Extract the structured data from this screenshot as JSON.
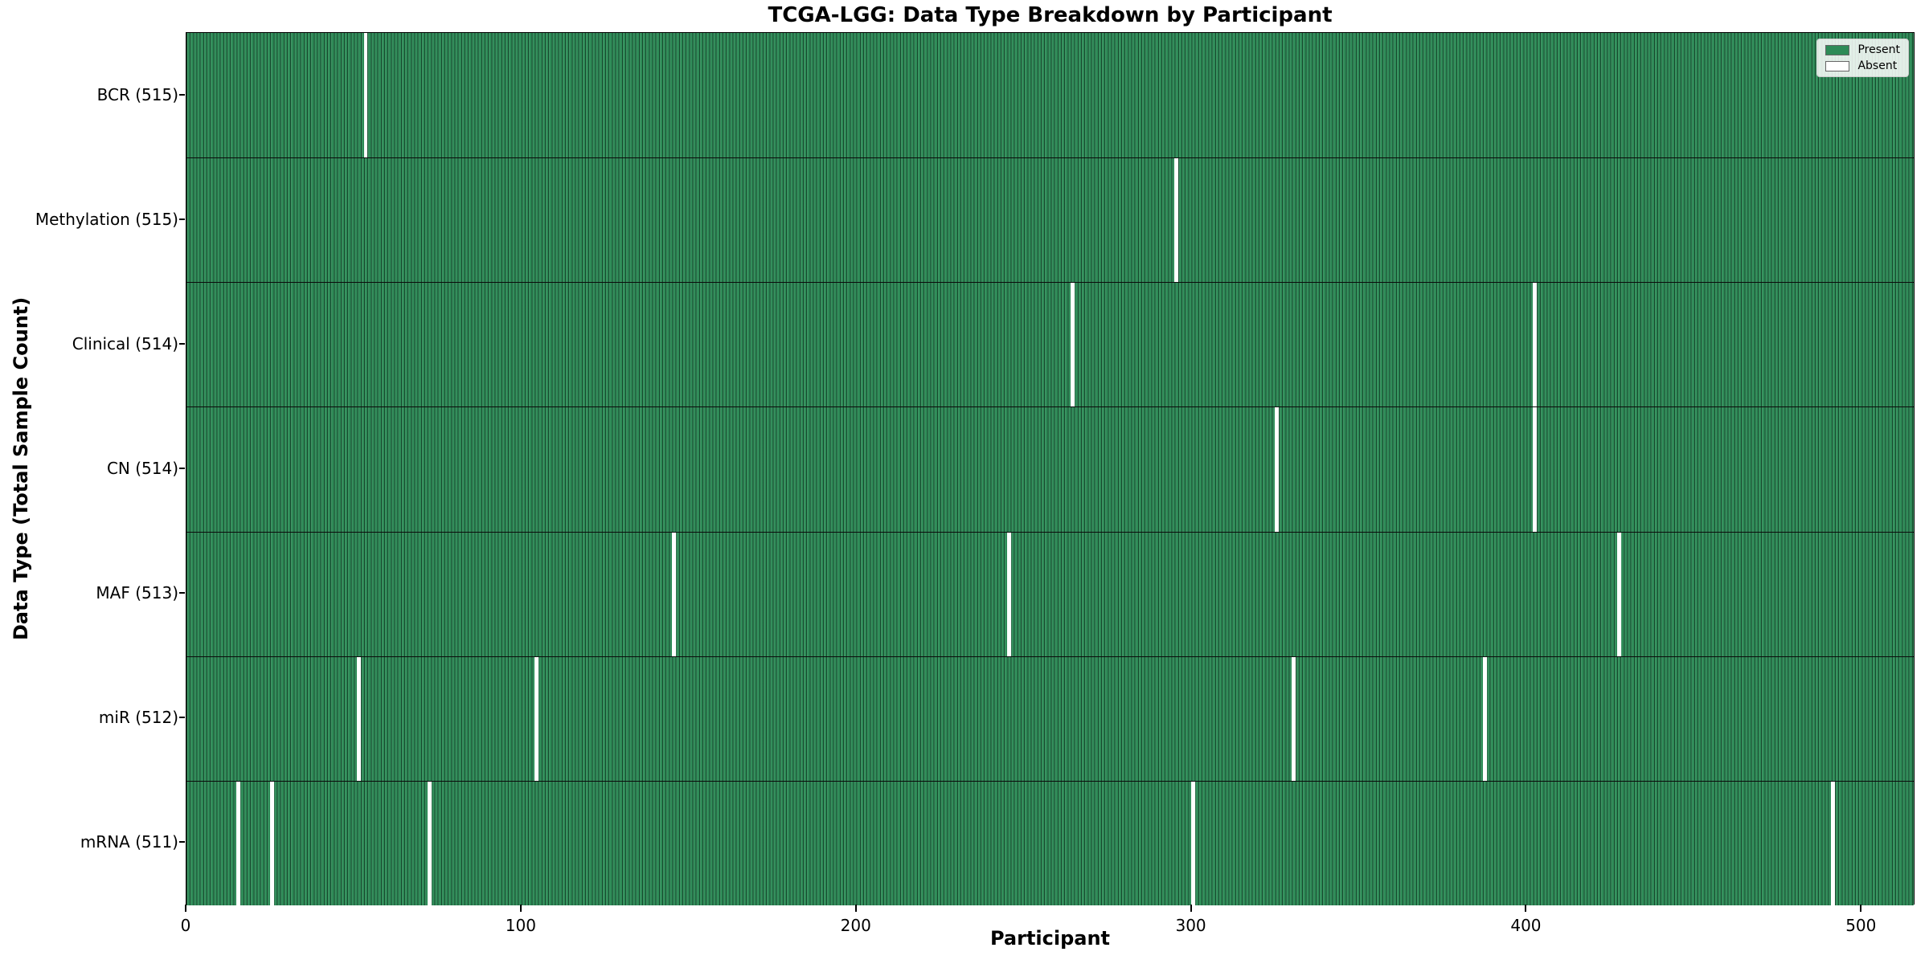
{
  "chart_data": {
    "type": "heatmap",
    "title": "TCGA-LGG: Data Type Breakdown by Participant",
    "xlabel": "Participant",
    "ylabel": "Data Type (Total Sample Count)",
    "x_ticks": [
      0,
      100,
      200,
      300,
      400,
      500
    ],
    "x_range": [
      0,
      516
    ],
    "grid": false,
    "legend_position": "upper right",
    "legend": [
      {
        "label": "Present",
        "color": "#2e8b57"
      },
      {
        "label": "Absent",
        "color": "#ffffff"
      }
    ],
    "rows": [
      {
        "label": "BCR (515)",
        "data_type": "BCR",
        "present_count": 515,
        "absent_participants": [
          53
        ]
      },
      {
        "label": "Methylation (515)",
        "data_type": "Methylation",
        "present_count": 515,
        "absent_participants": [
          295
        ]
      },
      {
        "label": "Clinical (514)",
        "data_type": "Clinical",
        "present_count": 514,
        "absent_participants": [
          264,
          402
        ]
      },
      {
        "label": "CN (514)",
        "data_type": "CN",
        "present_count": 514,
        "absent_participants": [
          325,
          402
        ]
      },
      {
        "label": "MAF (513)",
        "data_type": "MAF",
        "present_count": 513,
        "absent_participants": [
          145,
          245,
          427
        ]
      },
      {
        "label": "miR (512)",
        "data_type": "miR",
        "present_count": 512,
        "absent_participants": [
          51,
          104,
          330,
          387
        ]
      },
      {
        "label": "mRNA (511)",
        "data_type": "mRNA",
        "present_count": 511,
        "absent_participants": [
          15,
          25,
          72,
          300,
          491
        ]
      }
    ],
    "colors": {
      "present": "#2e8b57",
      "absent": "#ffffff",
      "bar_edge": "#123c26"
    }
  }
}
